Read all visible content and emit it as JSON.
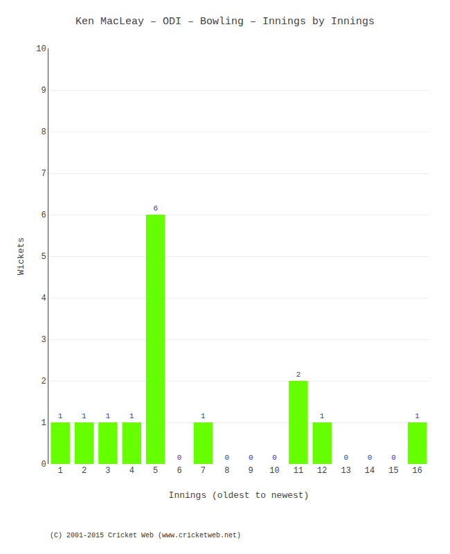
{
  "chart_data": {
    "type": "bar",
    "title": "Ken MacLeay – ODI – Bowling – Innings by Innings",
    "x_label": "Innings (oldest to newest)",
    "y_label": "Wickets",
    "categories": [
      "1",
      "2",
      "3",
      "4",
      "5",
      "6",
      "7",
      "8",
      "9",
      "10",
      "11",
      "12",
      "13",
      "14",
      "15",
      "16"
    ],
    "values": [
      1,
      1,
      1,
      1,
      6,
      0,
      1,
      0,
      0,
      0,
      2,
      1,
      0,
      0,
      0,
      1
    ],
    "color": "#66ff00",
    "ylim": [
      0,
      10
    ],
    "yticks": [
      0,
      1,
      2,
      3,
      4,
      5,
      6,
      7,
      8,
      9,
      10
    ],
    "grid": true,
    "data_labels": true,
    "annotations": [
      "(C) 2001-2015 Cricket Web (www.cricketweb.net)"
    ]
  }
}
